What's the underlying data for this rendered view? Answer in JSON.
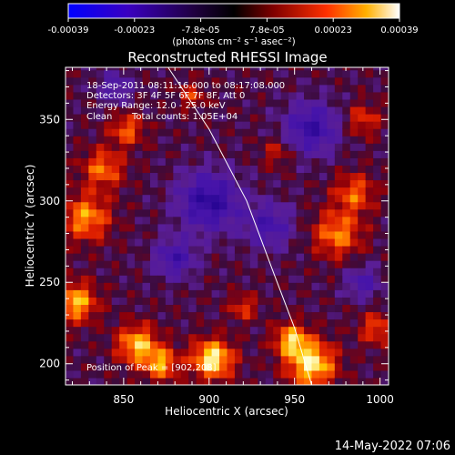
{
  "chart_data": {
    "type": "heatmap",
    "title": "Reconstructed RHESSI Image",
    "xlabel": "Heliocentric X (arcsec)",
    "ylabel": "Heliocentric Y (arcsec)",
    "xlim": [
      816,
      1005
    ],
    "ylim": [
      187,
      382
    ],
    "xticks": [
      850,
      900,
      950,
      1000
    ],
    "yticks": [
      200,
      250,
      300,
      350
    ],
    "colorbar": {
      "ticklabels": [
        "-0.00039",
        "-0.00023",
        "-7.8e-05",
        "7.8e-05",
        "0.00023",
        "0.00039"
      ],
      "range": [
        -0.00039,
        0.00039
      ],
      "units": "(photons cm⁻² s⁻¹ asec⁻²)"
    },
    "annotations": [
      "18-Sep-2011 08:11:16.000 to 08:17:08.000",
      "Detectors: 3F 4F 5F 6F 7F 8F, Att 0",
      "Energy Range: 12.0 - 25.0 keV",
      "Clean",
      "Total counts: 1.05E+04"
    ],
    "peak_label": "Position of Peak = [902,208]",
    "peak": [
      902,
      208
    ],
    "limb_curve": [
      [
        876,
        382
      ],
      [
        900,
        344
      ],
      [
        922,
        300
      ],
      [
        938,
        255
      ],
      [
        950,
        222
      ],
      [
        960,
        187
      ]
    ],
    "hotspots": [
      [
        902,
        203,
        12,
        1.0
      ],
      [
        960,
        200,
        14,
        0.95
      ],
      [
        948,
        215,
        10,
        0.75
      ],
      [
        858,
        212,
        12,
        0.8
      ],
      [
        872,
        200,
        10,
        0.7
      ],
      [
        822,
        238,
        12,
        0.8
      ],
      [
        828,
        290,
        14,
        0.7
      ],
      [
        838,
        320,
        12,
        0.6
      ],
      [
        852,
        344,
        10,
        0.55
      ],
      [
        975,
        280,
        14,
        0.65
      ],
      [
        985,
        305,
        12,
        0.55
      ],
      [
        920,
        235,
        8,
        0.45
      ],
      [
        890,
        365,
        8,
        0.4
      ],
      [
        998,
        222,
        10,
        0.5
      ],
      [
        940,
        330,
        9,
        0.35
      ],
      [
        990,
        350,
        10,
        0.45
      ]
    ],
    "coldspots": [
      [
        900,
        300,
        18,
        0.8
      ],
      [
        960,
        345,
        16,
        0.7
      ],
      [
        880,
        265,
        12,
        0.6
      ],
      [
        935,
        285,
        14,
        0.55
      ],
      [
        990,
        250,
        10,
        0.5
      ],
      [
        845,
        370,
        10,
        0.45
      ]
    ]
  },
  "timestamp": "14-May-2022 07:06"
}
